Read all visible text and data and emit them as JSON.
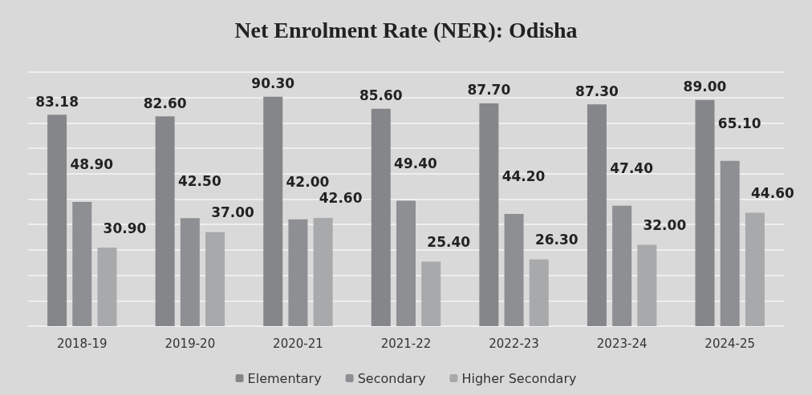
{
  "chart_data": {
    "type": "bar",
    "title": "Net Enrolment Rate (NER): Odisha",
    "categories": [
      "2018-19",
      "2019-20",
      "2020-21",
      "2021-22",
      "2022-23",
      "2023-24",
      "2024-25"
    ],
    "series": [
      {
        "name": "Elementary",
        "color": "#858689",
        "values": [
          83.18,
          82.6,
          90.3,
          85.6,
          87.7,
          87.3,
          89.0
        ],
        "value_labels": [
          "83.18",
          "82.60",
          "90.30",
          "85.60",
          "87.70",
          "87.30",
          "89.00"
        ]
      },
      {
        "name": "Secondary",
        "color": "#8e8f92",
        "values": [
          48.9,
          42.5,
          42.0,
          49.4,
          44.2,
          47.4,
          65.1
        ],
        "value_labels": [
          "48.90",
          "42.50",
          "42.00",
          "49.40",
          "44.20",
          "47.40",
          "65.10"
        ]
      },
      {
        "name": "Higher Secondary",
        "color": "#a8a9ab",
        "values": [
          30.9,
          37.0,
          42.6,
          25.4,
          26.3,
          32.0,
          44.6
        ],
        "value_labels": [
          "30.90",
          "37.00",
          "42.60",
          "25.40",
          "26.30",
          "32.00",
          "44.60"
        ]
      }
    ],
    "ylim": [
      0,
      100
    ],
    "yticks": [
      {
        "value": 0,
        "label": null
      },
      {
        "value": 10,
        "label": null
      },
      {
        "value": 20,
        "label": null
      },
      {
        "value": 30,
        "label": null
      },
      {
        "value": 40,
        "label": null
      },
      {
        "value": 50,
        "label": null
      },
      {
        "value": 60,
        "label": null
      },
      {
        "value": 70,
        "label": null
      },
      {
        "value": 80,
        "label": null
      },
      {
        "value": 90,
        "label": null
      },
      {
        "value": 100,
        "label": null
      }
    ],
    "tick_labels": "x",
    "grid": "y",
    "legend": "bottom"
  }
}
